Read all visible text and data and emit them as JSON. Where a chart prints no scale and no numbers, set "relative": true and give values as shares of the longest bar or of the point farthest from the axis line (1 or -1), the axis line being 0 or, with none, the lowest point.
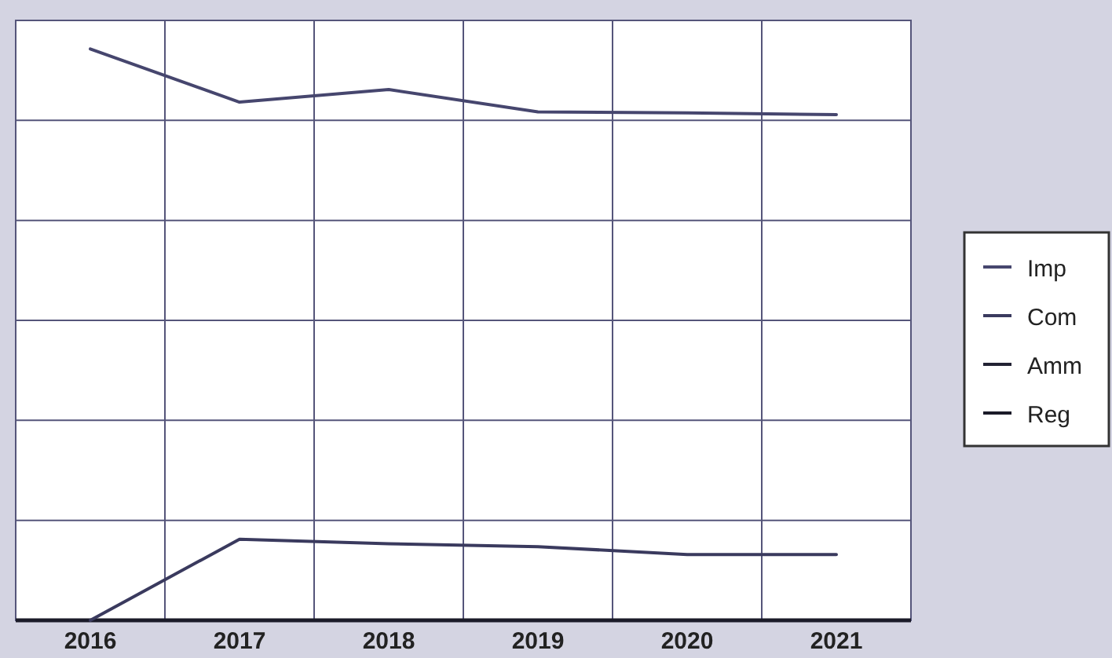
{
  "chart_data": {
    "type": "line",
    "relative": true,
    "categories": [
      "2016",
      "2017",
      "2018",
      "2019",
      "2020",
      "2021"
    ],
    "series": [
      {
        "name": "Imp",
        "color": "#46466e",
        "values": [
          1,
          0.907,
          0.929,
          0.89,
          0.888,
          0.885
        ]
      },
      {
        "name": "Com",
        "color": "#3a3a5e",
        "values": [
          0,
          0.142,
          0.134,
          0.129,
          0.115,
          0.115
        ]
      },
      {
        "name": "Amm",
        "color": "#222233",
        "values": [
          null,
          null,
          null,
          null,
          null,
          null
        ]
      },
      {
        "name": "Reg",
        "color": "#1a1a28",
        "values": [
          null,
          null,
          null,
          null,
          null,
          null
        ]
      }
    ],
    "grid": true,
    "legend": "right",
    "marker": "none",
    "line_style": "solid"
  }
}
